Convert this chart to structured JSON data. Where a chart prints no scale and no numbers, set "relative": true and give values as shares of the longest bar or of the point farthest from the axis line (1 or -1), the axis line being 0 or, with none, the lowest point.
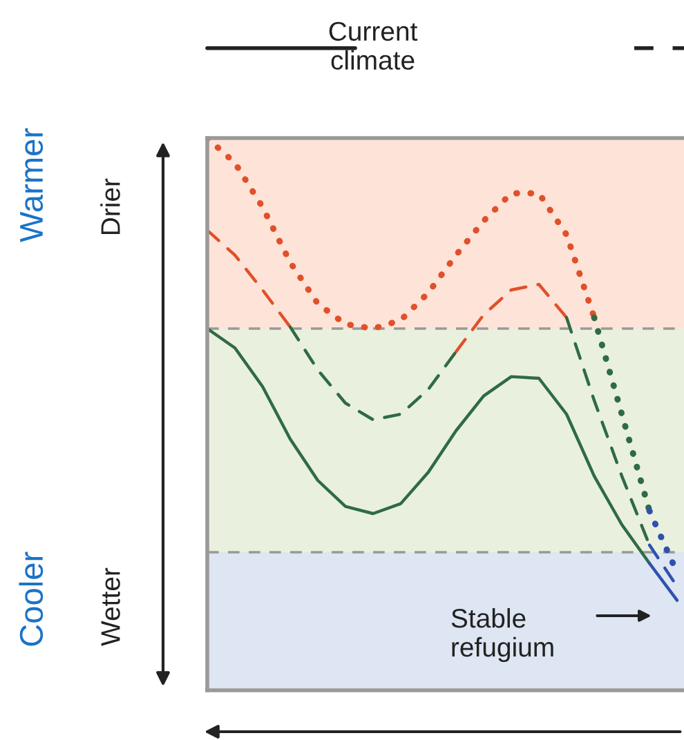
{
  "chart_data": {
    "type": "line",
    "relative": true,
    "categories": [
      null,
      null,
      null,
      null,
      null,
      null,
      null,
      null,
      null,
      null,
      null,
      null,
      null,
      null,
      null,
      null,
      null,
      null
    ],
    "series": [
      {
        "color": "#e0502a",
        "line_style": "dotted",
        "values": [
          1.0,
          0.955,
          0.875,
          0.775,
          0.7,
          0.663,
          0.655,
          0.67,
          0.72,
          0.788,
          0.85,
          0.9,
          0.9,
          0.825,
          0.675,
          null,
          null,
          null
        ]
      },
      {
        "color": "#2f6b45",
        "line_style": "dotted",
        "values": [
          null,
          null,
          null,
          null,
          null,
          null,
          null,
          null,
          null,
          null,
          null,
          null,
          null,
          null,
          0.675,
          0.5,
          0.325,
          null
        ]
      },
      {
        "color": "#3050b0",
        "line_style": "dotted",
        "values": [
          null,
          null,
          null,
          null,
          null,
          null,
          null,
          null,
          null,
          null,
          null,
          null,
          null,
          null,
          null,
          null,
          0.325,
          0.213
        ]
      },
      {
        "color": "#e0502a",
        "line_style": "dashed",
        "values": [
          0.833,
          0.788,
          0.725,
          0.658,
          null,
          null,
          null,
          null,
          null,
          0.613,
          0.68,
          0.725,
          0.735,
          0.675,
          null,
          null,
          null,
          null
        ]
      },
      {
        "color": "#2f6b45",
        "line_style": "dashed",
        "values": [
          null,
          null,
          null,
          0.658,
          0.58,
          0.52,
          0.49,
          0.5,
          0.545,
          0.613,
          null,
          null,
          null,
          0.675,
          0.525,
          0.388,
          0.263,
          null
        ]
      },
      {
        "color": "#3050b0",
        "line_style": "dashed",
        "values": [
          null,
          null,
          null,
          null,
          null,
          null,
          null,
          null,
          null,
          null,
          null,
          null,
          null,
          null,
          null,
          null,
          0.263,
          0.188
        ]
      },
      {
        "color": "#2f6b45",
        "line_style": "solid",
        "values": [
          0.655,
          0.62,
          0.55,
          0.455,
          0.38,
          0.333,
          0.32,
          0.338,
          0.395,
          0.47,
          0.533,
          0.568,
          0.565,
          0.5,
          0.388,
          0.3,
          0.23,
          null
        ]
      },
      {
        "color": "#3050b0",
        "line_style": "solid",
        "values": [
          null,
          null,
          null,
          null,
          null,
          null,
          null,
          null,
          null,
          null,
          null,
          null,
          null,
          null,
          null,
          null,
          0.23,
          0.163
        ]
      }
    ],
    "bands": [
      {
        "axis": "y",
        "from": 0.655,
        "to": 1.0,
        "color": "#fde3d8"
      },
      {
        "axis": "y",
        "from": 0.25,
        "to": 0.655,
        "color": "#eaf0de"
      },
      {
        "axis": "y",
        "from": 0.0,
        "to": 0.25,
        "color": "#dde6f2"
      }
    ],
    "ref_lines": [
      {
        "axis": "y",
        "value": 0.655,
        "color": "#999999",
        "line_style": "dashed"
      },
      {
        "axis": "y",
        "value": 0.25,
        "color": "#999999",
        "line_style": "dashed"
      }
    ],
    "annotations": [
      "Current\nclimate",
      "Warmer",
      "Drier",
      "Cooler",
      "Wetter",
      "Stable\nrefugium"
    ],
    "grid": false,
    "legend": false
  }
}
